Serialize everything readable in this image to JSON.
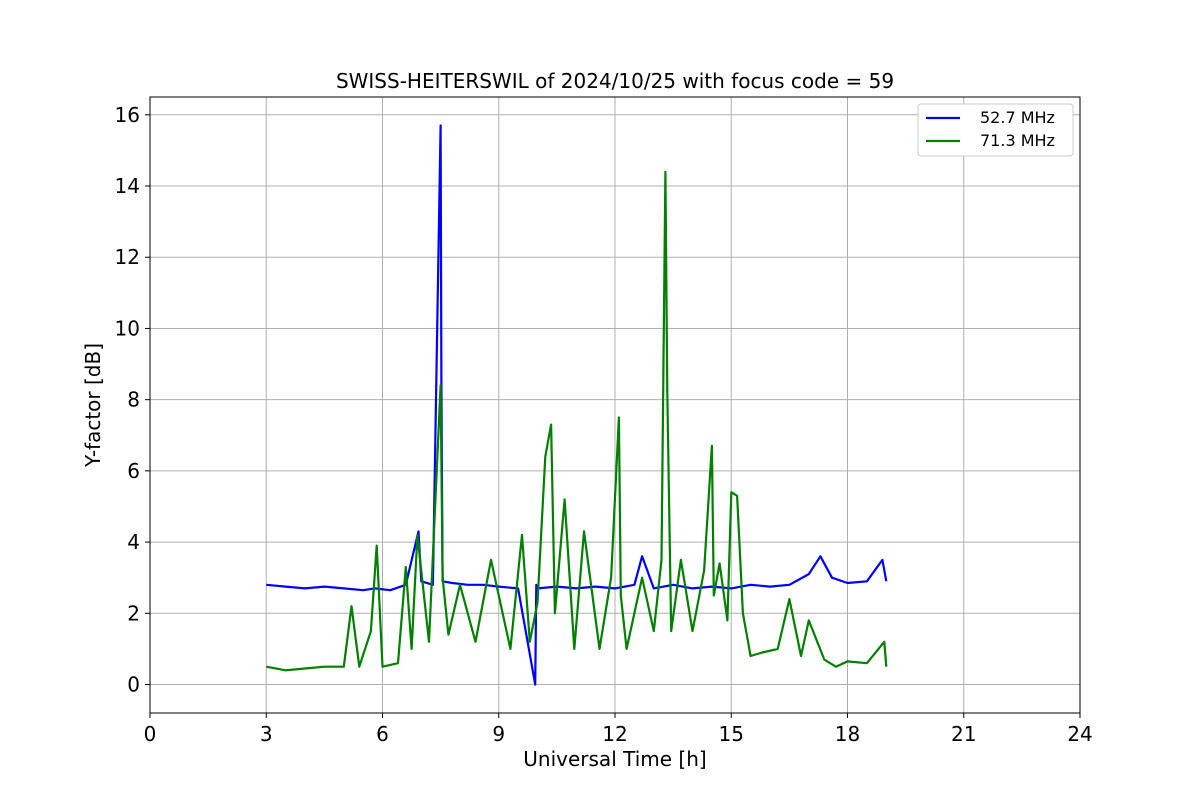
{
  "chart_data": {
    "type": "line",
    "title": "SWISS-HEITERSWIL of 2024/10/25 with focus code = 59",
    "xlabel": "Universal Time [h]",
    "ylabel": "Y-factor [dB]",
    "xlim": [
      0,
      24
    ],
    "ylim": [
      -0.8,
      16.5
    ],
    "xticks": [
      0,
      3,
      6,
      9,
      12,
      15,
      18,
      21,
      24
    ],
    "yticks": [
      0,
      2,
      4,
      6,
      8,
      10,
      12,
      14,
      16
    ],
    "grid": true,
    "legend_position": "top-right",
    "series": [
      {
        "name": "52.7 MHz",
        "color": "#0000ff",
        "x": [
          3.0,
          3.5,
          4.0,
          4.5,
          5.0,
          5.5,
          5.8,
          6.2,
          6.6,
          6.93,
          7.0,
          7.3,
          7.5,
          7.52,
          7.55,
          7.8,
          8.2,
          8.6,
          9.0,
          9.5,
          9.94,
          9.97,
          10.0,
          10.5,
          11.0,
          11.5,
          12.0,
          12.5,
          12.7,
          13.0,
          13.5,
          14.0,
          14.5,
          15.0,
          15.5,
          16.0,
          16.5,
          17.0,
          17.3,
          17.6,
          18.0,
          18.5,
          18.9,
          19.0
        ],
        "y": [
          2.8,
          2.75,
          2.7,
          2.75,
          2.7,
          2.65,
          2.7,
          2.65,
          2.8,
          4.3,
          2.9,
          2.8,
          15.7,
          8.4,
          2.9,
          2.85,
          2.8,
          2.8,
          2.75,
          2.7,
          0.0,
          2.8,
          2.7,
          2.75,
          2.7,
          2.75,
          2.7,
          2.8,
          3.6,
          2.7,
          2.8,
          2.7,
          2.75,
          2.7,
          2.8,
          2.75,
          2.8,
          3.1,
          3.6,
          3.0,
          2.85,
          2.9,
          3.5,
          2.9
        ]
      },
      {
        "name": "71.3 MHz",
        "color": "#008000",
        "x": [
          3.0,
          3.5,
          4.0,
          4.5,
          5.0,
          5.2,
          5.4,
          5.7,
          5.85,
          6.0,
          6.4,
          6.6,
          6.75,
          6.9,
          7.2,
          7.5,
          7.55,
          7.7,
          8.0,
          8.4,
          8.8,
          9.3,
          9.6,
          9.8,
          10.0,
          10.2,
          10.35,
          10.45,
          10.7,
          10.95,
          11.2,
          11.6,
          11.9,
          12.1,
          12.15,
          12.3,
          12.7,
          13.0,
          13.2,
          13.3,
          13.35,
          13.45,
          13.7,
          14.0,
          14.3,
          14.5,
          14.55,
          14.7,
          14.9,
          15.0,
          15.15,
          15.3,
          15.5,
          15.8,
          16.2,
          16.5,
          16.8,
          17.0,
          17.4,
          17.7,
          18.0,
          18.5,
          18.95,
          19.0
        ],
        "y": [
          0.5,
          0.4,
          0.45,
          0.5,
          0.5,
          2.2,
          0.5,
          1.5,
          3.9,
          0.5,
          0.6,
          3.3,
          1.0,
          4.2,
          1.2,
          8.4,
          3.0,
          1.4,
          2.8,
          1.2,
          3.5,
          1.0,
          4.2,
          1.2,
          2.3,
          6.4,
          7.3,
          2.0,
          5.2,
          1.0,
          4.3,
          1.0,
          3.0,
          7.5,
          2.5,
          1.0,
          3.0,
          1.5,
          3.5,
          14.4,
          8.2,
          1.5,
          3.5,
          1.5,
          3.2,
          6.7,
          2.5,
          3.4,
          1.8,
          5.4,
          5.3,
          2.0,
          0.8,
          0.9,
          1.0,
          2.4,
          0.8,
          1.8,
          0.7,
          0.5,
          0.65,
          0.6,
          1.2,
          0.5
        ]
      }
    ]
  }
}
